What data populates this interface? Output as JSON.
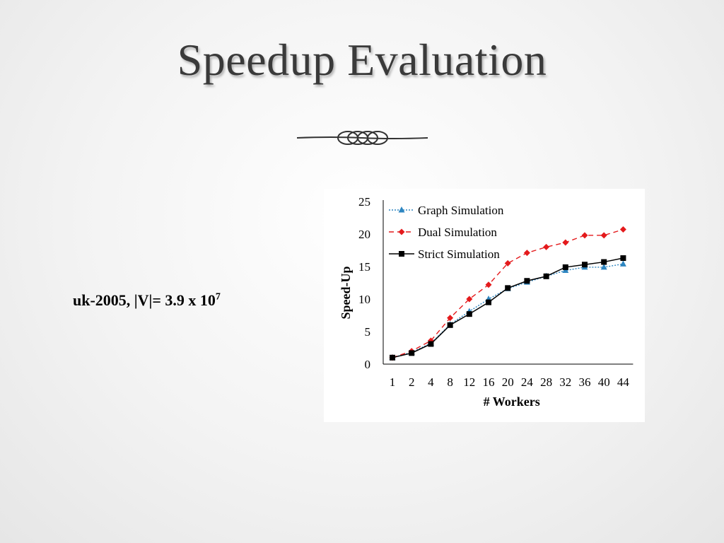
{
  "slide": {
    "title": "Speedup Evaluation",
    "caption_main": "uk-2005,  |V|= 3.9 x 10",
    "caption_exponent": "7"
  },
  "chart_data": {
    "type": "line",
    "categories": [
      "1",
      "2",
      "4",
      "8",
      "12",
      "16",
      "20",
      "24",
      "28",
      "32",
      "36",
      "40",
      "44"
    ],
    "series": [
      {
        "name": "Graph Simulation",
        "color": "#2e86c1",
        "marker": "triangle",
        "dash": "dotted",
        "values": [
          1.0,
          1.8,
          3.2,
          6.1,
          8.1,
          10.0,
          11.6,
          12.6,
          13.5,
          14.4,
          14.9,
          14.9,
          15.4
        ]
      },
      {
        "name": "Dual Simulation",
        "color": "#e41a1c",
        "marker": "diamond",
        "dash": "dashed",
        "values": [
          1.0,
          2.0,
          3.6,
          7.1,
          10.0,
          12.2,
          15.5,
          17.1,
          18.0,
          18.7,
          19.8,
          19.8,
          20.7
        ]
      },
      {
        "name": "Strict Simulation",
        "color": "#000000",
        "marker": "square",
        "dash": "solid",
        "values": [
          1.0,
          1.7,
          3.1,
          6.0,
          7.7,
          9.5,
          11.7,
          12.8,
          13.5,
          14.9,
          15.3,
          15.7,
          16.3
        ]
      }
    ],
    "xlabel": "# Workers",
    "ylabel": "Speed-Up",
    "yticks": [
      0,
      5,
      10,
      15,
      20,
      25
    ],
    "ylim": [
      0,
      25
    ],
    "grid": false,
    "legend_position": "top-left"
  }
}
